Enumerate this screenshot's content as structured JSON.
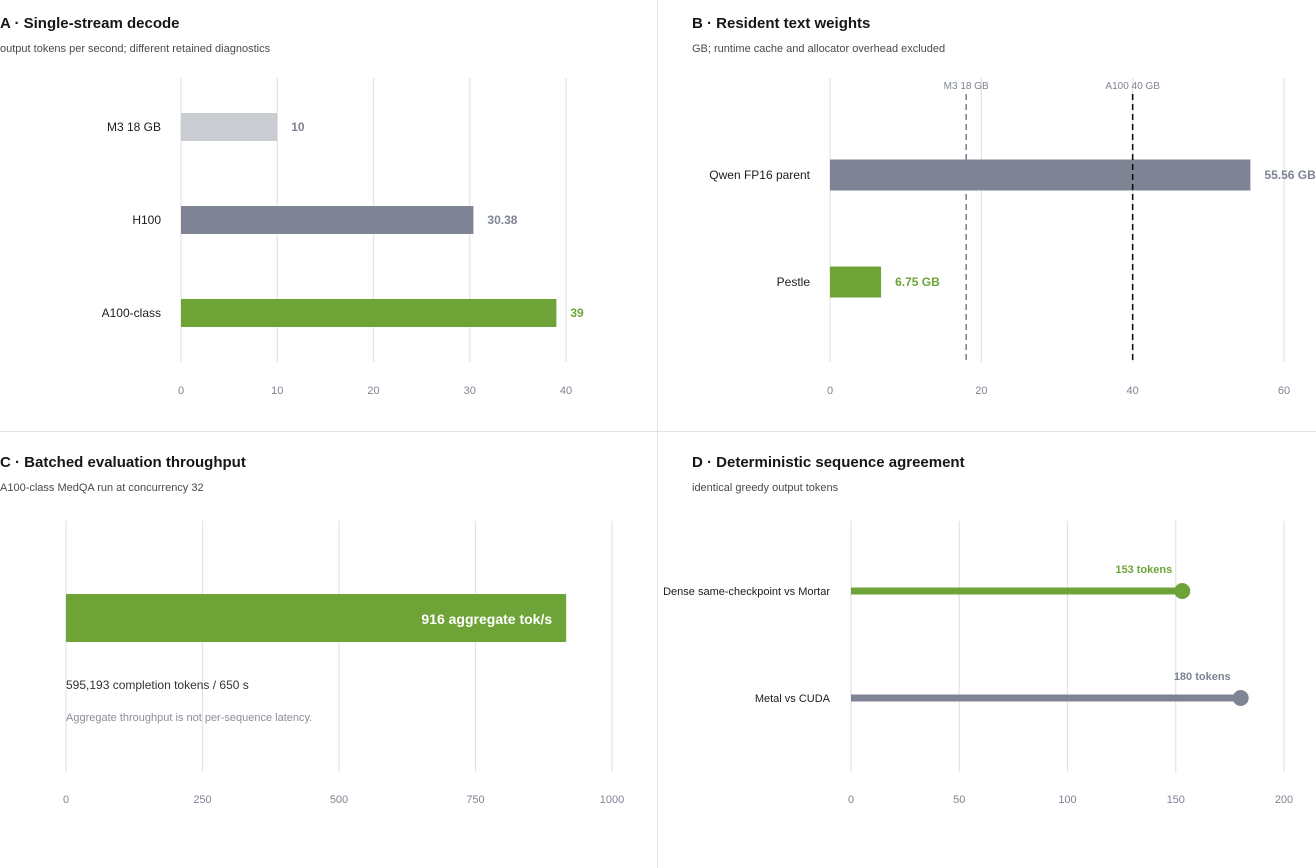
{
  "colors": {
    "green": "#6ea437",
    "gray": "#7e8493",
    "light_gray": "#c9ccd1",
    "grid": "#e3e3e3",
    "tick": "#7e8493",
    "label": "#1c1c1c",
    "dashed_m3": "#7e8493",
    "dashed_a100": "#111111"
  },
  "chart_data": [
    {
      "id": "A",
      "type": "bar",
      "orientation": "horizontal",
      "title": "A · Single-stream decode",
      "subtitle": "output tokens per second; different retained diagnostics",
      "categories": [
        "M3 18 GB",
        "H100",
        "A100-class"
      ],
      "values": [
        10,
        30.38,
        39
      ],
      "value_labels": [
        "10",
        "30.38",
        "39"
      ],
      "bar_colors": [
        "light_gray",
        "gray",
        "green"
      ],
      "label_colors": [
        "gray",
        "gray",
        "green"
      ],
      "xlim": [
        0,
        40
      ],
      "xticks": [
        0,
        10,
        20,
        30,
        40
      ],
      "grid": true
    },
    {
      "id": "B",
      "type": "bar",
      "orientation": "horizontal",
      "title": "B · Resident text weights",
      "subtitle": "GB; runtime cache and allocator overhead excluded",
      "categories": [
        "Qwen FP16 parent",
        "Pestle"
      ],
      "values": [
        55.56,
        6.75
      ],
      "value_labels": [
        "55.56 GB",
        "6.75 GB"
      ],
      "bar_colors": [
        "gray",
        "green"
      ],
      "label_colors": [
        "gray",
        "green"
      ],
      "xlim": [
        0,
        60
      ],
      "xticks": [
        0,
        20,
        40,
        60
      ],
      "grid": true,
      "reference_lines": [
        {
          "value": 18,
          "label": "M3 18 GB",
          "color": "dashed_m3"
        },
        {
          "value": 40,
          "label": "A100 40 GB",
          "color": "dashed_a100"
        }
      ]
    },
    {
      "id": "C",
      "type": "bar",
      "orientation": "horizontal",
      "title": "C · Batched evaluation throughput",
      "subtitle": "A100-class MedQA run at concurrency 32",
      "categories": [
        ""
      ],
      "values": [
        916
      ],
      "value_labels": [
        "916 aggregate tok/s"
      ],
      "bar_colors": [
        "green"
      ],
      "xlim": [
        0,
        1000
      ],
      "xticks": [
        0,
        250,
        500,
        750,
        1000
      ],
      "grid": true,
      "annotations": [
        "595,193 completion tokens / 650 s",
        "Aggregate throughput is not per-sequence latency."
      ]
    },
    {
      "id": "D",
      "type": "bar",
      "orientation": "horizontal",
      "style": "lollipop",
      "title": "D · Deterministic sequence agreement",
      "subtitle": "identical greedy output tokens",
      "categories": [
        "Dense same-checkpoint vs Mortar",
        "Metal vs CUDA"
      ],
      "values": [
        153,
        180
      ],
      "value_labels": [
        "153 tokens",
        "180 tokens"
      ],
      "bar_colors": [
        "green",
        "gray"
      ],
      "label_colors": [
        "green",
        "gray"
      ],
      "xlim": [
        0,
        200
      ],
      "xticks": [
        0,
        50,
        100,
        150,
        200
      ],
      "grid": true
    }
  ]
}
